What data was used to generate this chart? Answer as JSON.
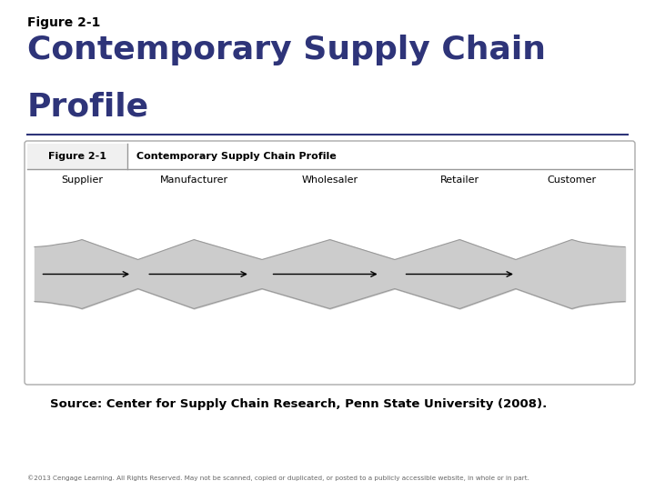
{
  "figure_label": "Figure 2-1",
  "title_line1": "Contemporary Supply Chain",
  "title_line2": "Profile",
  "title_color": "#2E3479",
  "figure_label_color": "#000000",
  "subtitle_label": "Figure 2-1",
  "subtitle_title": "Contemporary Supply Chain Profile",
  "nodes": [
    "Supplier",
    "Manufacturer",
    "Wholesaler",
    "Retailer",
    "Customer"
  ],
  "source_text": "Source: Center for Supply Chain Research, Penn State University (2008).",
  "copyright_text": "©2013 Cengage Learning. All Rights Reserved. May not be scanned, copied or duplicated, or posted to a publicly accessible website, in whole or in part.",
  "bg_color": "#ffffff",
  "shape_fill": "#cccccc",
  "shape_edge": "#999999",
  "arrow_color": "#000000",
  "separator_color": "#2E3479",
  "box_edge": "#aaaaaa"
}
